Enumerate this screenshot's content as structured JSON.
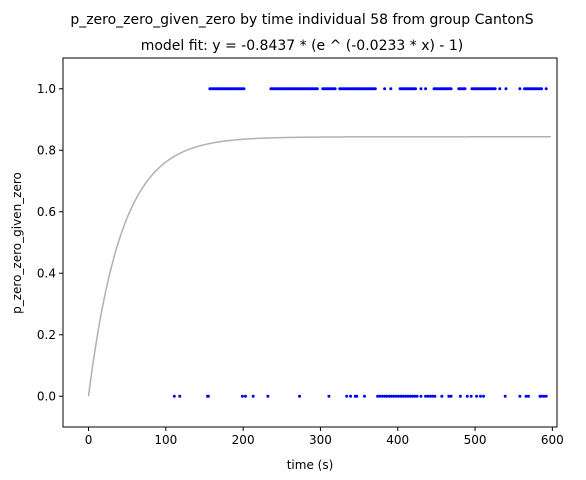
{
  "chart_data": {
    "type": "scatter",
    "title": "p_zero_zero_given_zero by time individual 58 from group CantonS",
    "subtitle": "model fit: y = -0.8437 * (e ^ (-0.0233 * x) - 1)",
    "xlabel": "time (s)",
    "ylabel": "p_zero_zero_given_zero",
    "xlim": [
      -33,
      606
    ],
    "ylim": [
      -0.1,
      1.1
    ],
    "xticks": [
      0,
      100,
      200,
      300,
      400,
      500,
      600
    ],
    "xtick_labels": [
      "0",
      "100",
      "200",
      "300",
      "400",
      "500",
      "600"
    ],
    "yticks": [
      0.0,
      0.2,
      0.4,
      0.6,
      0.8,
      1.0
    ],
    "ytick_labels": [
      "0.0",
      "0.2",
      "0.4",
      "0.6",
      "0.8",
      "1.0"
    ],
    "grid": false,
    "model": {
      "a": -0.8437,
      "b": -0.0233,
      "x_range": [
        0,
        598
      ],
      "color": "#b0b0b0"
    },
    "points_color": "#0000ff",
    "series": [
      {
        "y": 1.0,
        "x": [
          157,
          159,
          161,
          163,
          165,
          167,
          169,
          171,
          173,
          175,
          177,
          179,
          181,
          183,
          185,
          187,
          189,
          191,
          193,
          195,
          197,
          199,
          201,
          236,
          238,
          240,
          242,
          244,
          246,
          248,
          250,
          252,
          254,
          256,
          258,
          260,
          262,
          264,
          266,
          268,
          270,
          272,
          274,
          276,
          278,
          280,
          282,
          284,
          286,
          288,
          290,
          292,
          294,
          296,
          303,
          305,
          307,
          309,
          311,
          313,
          315,
          317,
          319,
          325,
          327,
          329,
          331,
          333,
          335,
          337,
          339,
          341,
          343,
          345,
          347,
          349,
          351,
          353,
          355,
          357,
          359,
          361,
          363,
          365,
          367,
          369,
          371,
          383,
          391,
          403,
          405,
          407,
          409,
          411,
          413,
          415,
          417,
          419,
          421,
          423,
          430,
          436,
          447,
          449,
          451,
          453,
          455,
          457,
          459,
          461,
          463,
          465,
          467,
          469,
          479,
          481,
          483,
          485,
          487,
          496,
          498,
          500,
          502,
          504,
          506,
          508,
          510,
          512,
          514,
          516,
          518,
          520,
          522,
          524,
          526,
          532,
          540,
          558,
          564,
          566,
          568,
          570,
          572,
          574,
          576,
          578,
          580,
          582,
          584,
          586,
          592
        ]
      },
      {
        "y": 0.0,
        "x": [
          111,
          118,
          154,
          155,
          199,
          203,
          213,
          232,
          273,
          311,
          334,
          339,
          345,
          347,
          357,
          374,
          377,
          380,
          383,
          386,
          389,
          392,
          395,
          398,
          401,
          404,
          407,
          410,
          413,
          416,
          419,
          422,
          425,
          430,
          436,
          439,
          442,
          445,
          448,
          457,
          466,
          469,
          481,
          490,
          495,
          502,
          507,
          511,
          539,
          558,
          566,
          569,
          584,
          586,
          589,
          592
        ]
      }
    ]
  }
}
